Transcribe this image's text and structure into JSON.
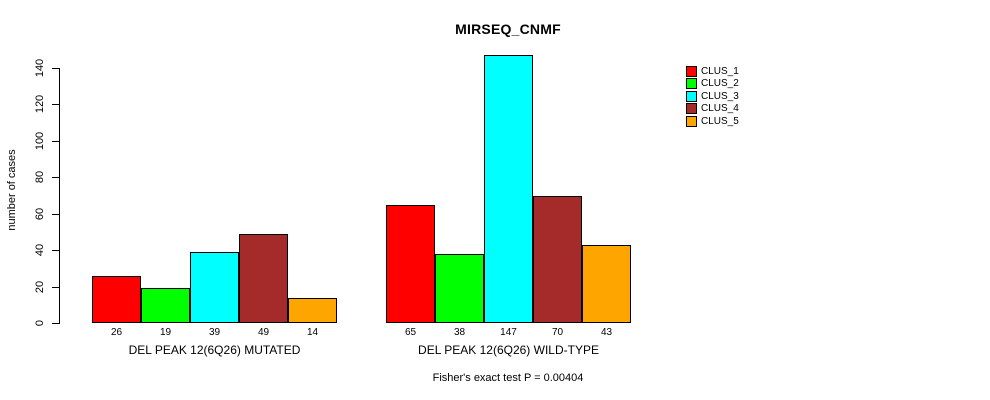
{
  "chart_data": {
    "type": "bar",
    "title": "MIRSEQ_CNMF",
    "ylabel": "number of cases",
    "xlabel": "",
    "ylim": [
      0,
      140
    ],
    "yticks": [
      0,
      20,
      40,
      60,
      80,
      100,
      120,
      140
    ],
    "grid": false,
    "legend_position": "right",
    "categories": [
      "DEL PEAK 12(6Q26) MUTATED",
      "DEL PEAK 12(6Q26) WILD-TYPE"
    ],
    "series": [
      {
        "name": "CLUS_1",
        "color": "#FF0000",
        "values": [
          26,
          65
        ]
      },
      {
        "name": "CLUS_2",
        "color": "#00FF00",
        "values": [
          19,
          38
        ]
      },
      {
        "name": "CLUS_3",
        "color": "#00FFFF",
        "values": [
          39,
          147
        ]
      },
      {
        "name": "CLUS_4",
        "color": "#A52A2A",
        "values": [
          49,
          70
        ]
      },
      {
        "name": "CLUS_5",
        "color": "#FFA500",
        "values": [
          14,
          43
        ]
      }
    ],
    "bar_value_labels_visible": true,
    "annotation": "Fisher's exact test P = 0.00404"
  }
}
